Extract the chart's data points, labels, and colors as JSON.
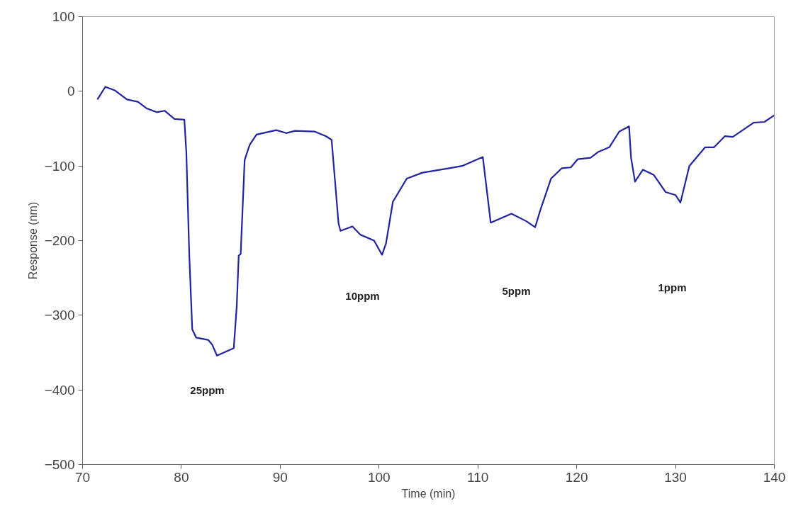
{
  "chart_data": {
    "type": "line",
    "xlabel": "Time (min)",
    "ylabel": "Response (nm)",
    "xlim": [
      70,
      140
    ],
    "xticks": [
      70,
      80,
      90,
      100,
      110,
      120,
      130,
      140
    ],
    "ylim": [
      -500,
      100
    ],
    "yticks": [
      -500,
      -400,
      -300,
      -200,
      -100,
      0,
      100
    ],
    "grid": false,
    "marker": "none",
    "line_style": "solid",
    "series": [
      {
        "color": "#2323a0",
        "x": [
          71.5,
          72.3,
          73.3,
          74.5,
          75.6,
          76.5,
          77.5,
          78.3,
          79.3,
          80.3,
          80.5,
          80.8,
          81.1,
          81.5,
          82.7,
          83.1,
          83.6,
          85.3,
          85.6,
          85.8,
          86.0,
          86.4,
          86.9,
          87.6,
          89.6,
          90.6,
          91.5,
          93.5,
          94.6,
          95.2,
          95.9,
          96.1,
          97.3,
          98.1,
          99.5,
          100.3,
          100.7,
          101.4,
          102.8,
          104.4,
          107.1,
          108.4,
          110.5,
          111.3,
          113.4,
          114.9,
          115.8,
          116.3,
          117.4,
          118.5,
          119.4,
          120.1,
          121.4,
          122.2,
          123.3,
          124.3,
          125.3,
          125.5,
          125.9,
          126.7,
          127.8,
          129.0,
          130.0,
          130.5,
          131.4,
          133.0,
          133.9,
          135.0,
          135.8,
          137.9,
          139.0,
          140.0
        ],
        "values": [
          -11,
          6,
          1,
          -11,
          -14,
          -23,
          -28,
          -26,
          -37,
          -38,
          -82,
          -220,
          -319,
          -330,
          -333,
          -339,
          -354,
          -344,
          -288,
          -220,
          -218,
          -92,
          -72,
          -58,
          -52,
          -56,
          -53,
          -54,
          -60,
          -65,
          -177,
          -187,
          -181,
          -192,
          -200,
          -219,
          -204,
          -148,
          -117,
          -109,
          -103,
          -100,
          -88,
          -176,
          -164,
          -174,
          -182,
          -160,
          -117,
          -103,
          -102,
          -91,
          -89,
          -81,
          -75,
          -54,
          -47,
          -89,
          -121,
          -105,
          -112,
          -135,
          -139,
          -149,
          -100,
          -75,
          -75,
          -60,
          -61,
          -42,
          -41,
          -32
        ]
      }
    ],
    "annotations": [
      "25ppm",
      "10ppm",
      "5ppm",
      "1ppm"
    ]
  }
}
